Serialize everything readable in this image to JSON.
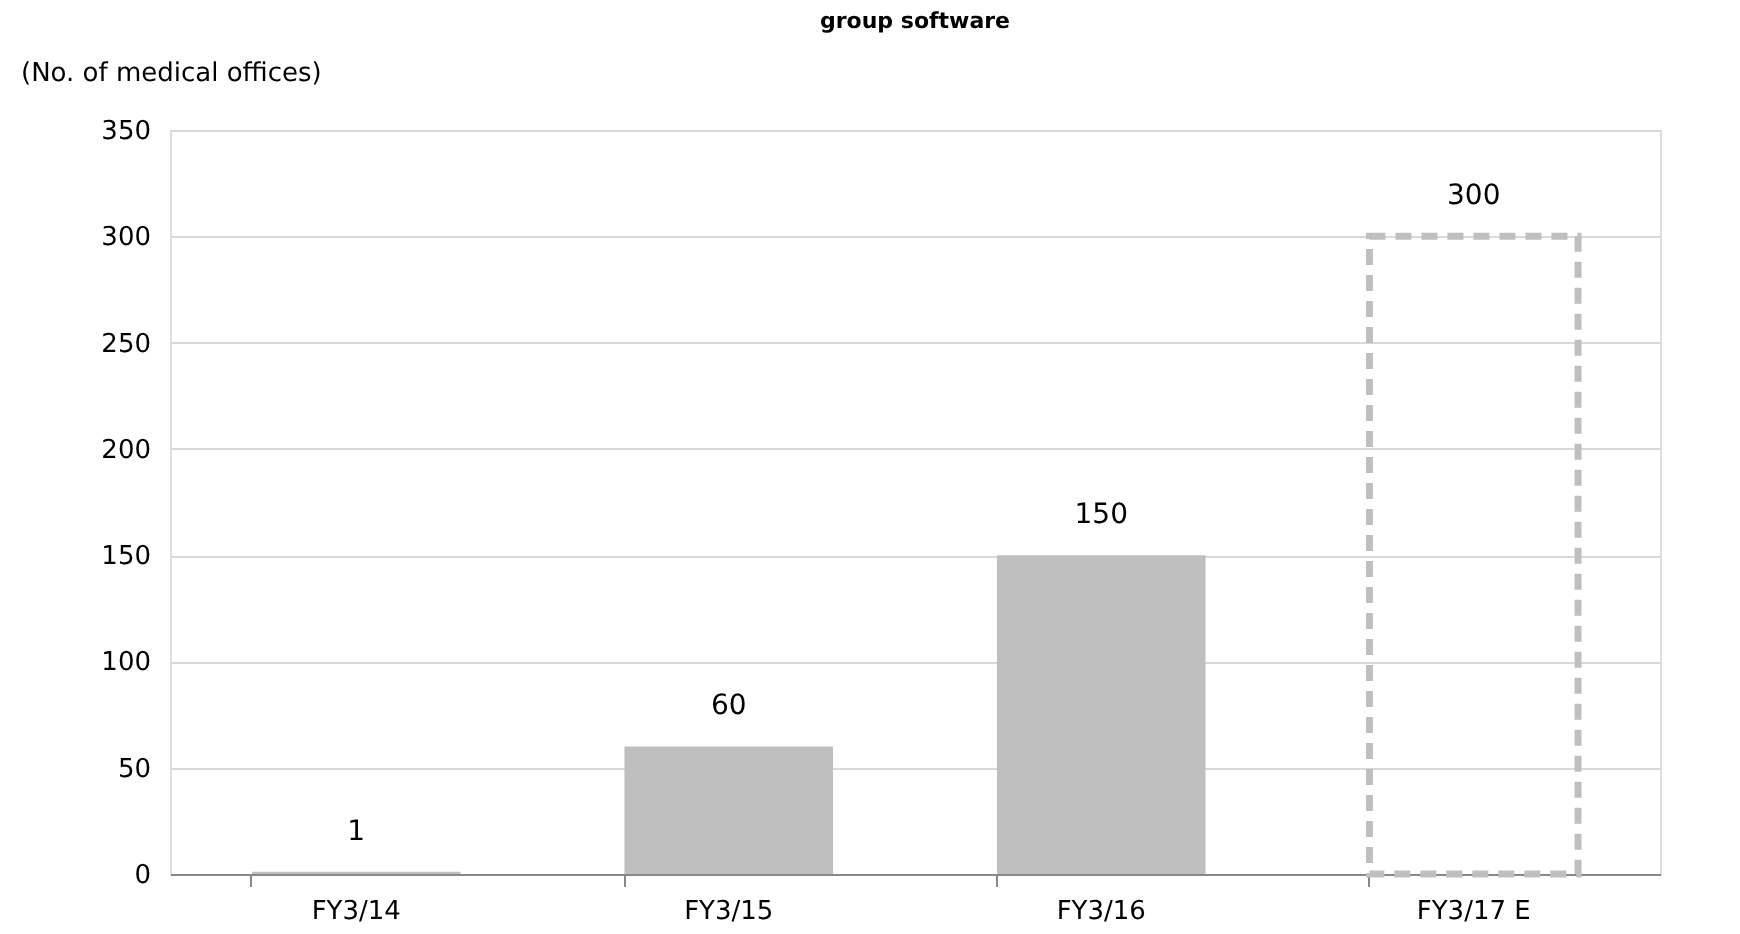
{
  "chart_data": {
    "type": "bar",
    "title": "group software",
    "ylabel": "(No. of medical offices)",
    "categories": [
      "FY3/14",
      "FY3/15",
      "FY3/16",
      "FY3/17 E"
    ],
    "series": [
      {
        "color": "#bfbfbf",
        "values": [
          1,
          60,
          150,
          null
        ]
      },
      {
        "color": "#bfbfbf",
        "line_style": "dashed",
        "values": [
          null,
          null,
          null,
          300
        ]
      }
    ],
    "ylim": [
      0,
      350
    ],
    "yticks": [
      0,
      50,
      100,
      150,
      200,
      250,
      300,
      350
    ],
    "grid": "y",
    "data_labels": true
  }
}
